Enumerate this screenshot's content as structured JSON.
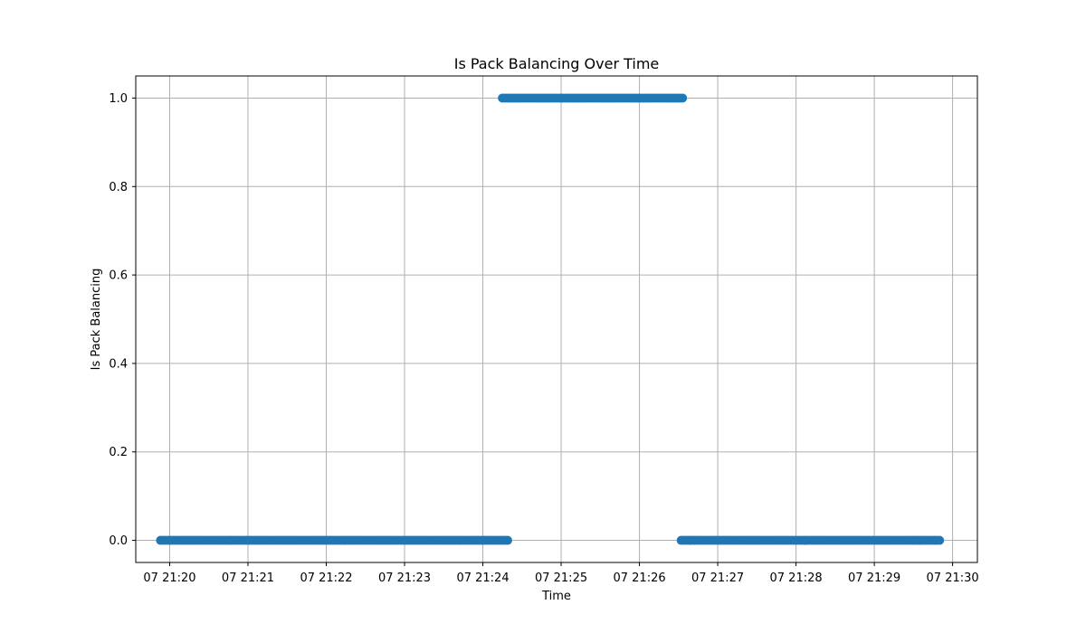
{
  "chart_data": {
    "type": "scatter",
    "title": "Is Pack Balancing Over Time",
    "xlabel": "Time",
    "ylabel": "Is Pack Balancing",
    "x_axis": {
      "type": "time",
      "min": "07 21:19:34",
      "max": "07 21:30:19",
      "ticks": [
        "07 21:20",
        "07 21:21",
        "07 21:22",
        "07 21:23",
        "07 21:24",
        "07 21:25",
        "07 21:26",
        "07 21:27",
        "07 21:28",
        "07 21:29",
        "07 21:30"
      ]
    },
    "y_axis": {
      "min": -0.05,
      "max": 1.05,
      "ticks": [
        0.0,
        0.2,
        0.4,
        0.6,
        0.8,
        1.0
      ],
      "tick_labels": [
        "0.0",
        "0.2",
        "0.4",
        "0.6",
        "0.8",
        "1.0"
      ]
    },
    "grid": true,
    "marker_color": "#1f77b4",
    "series": [
      {
        "segments": [
          {
            "x_start": "07 21:19:53",
            "x_end": "07 21:24:19",
            "y": 0
          },
          {
            "x_start": "07 21:24:15",
            "x_end": "07 21:26:33",
            "y": 1
          },
          {
            "x_start": "07 21:26:32",
            "x_end": "07 21:29:51",
            "y": 0
          }
        ]
      }
    ]
  }
}
